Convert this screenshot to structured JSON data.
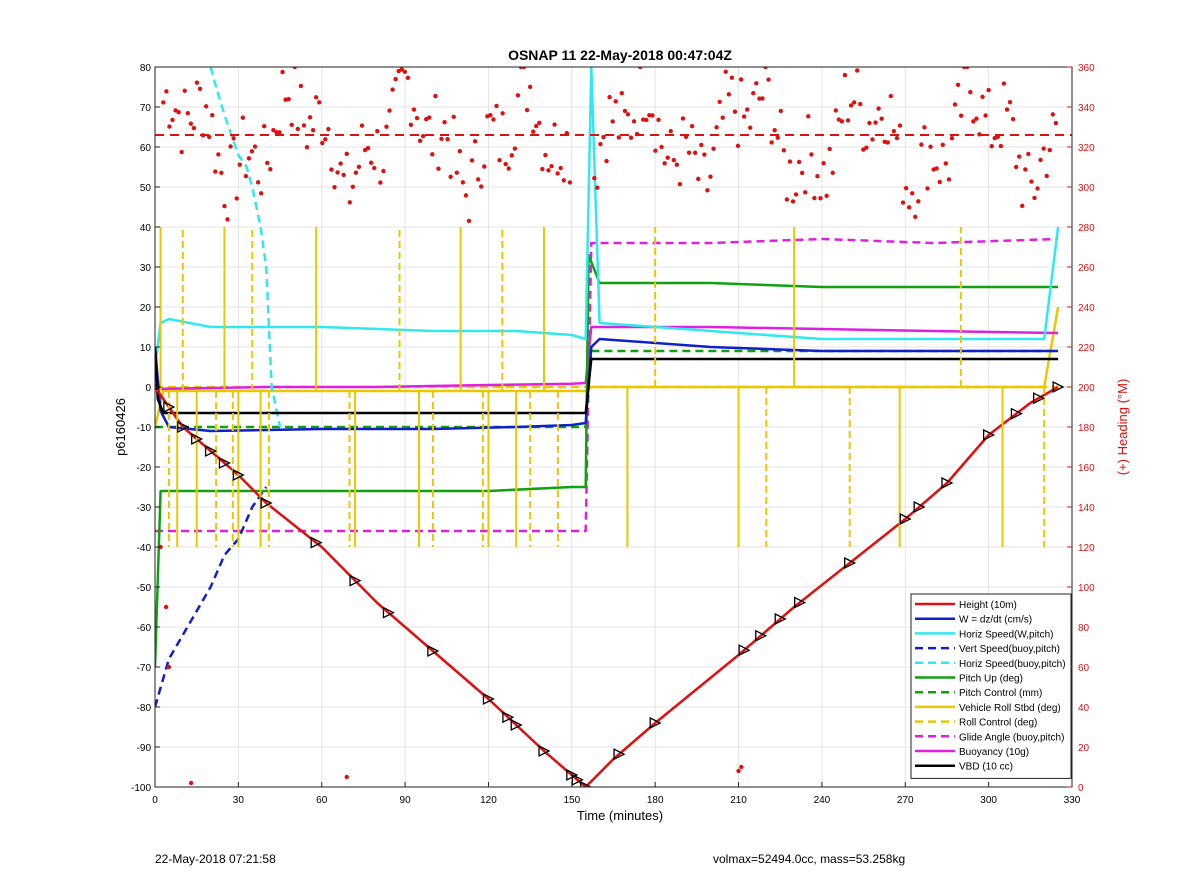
{
  "footer": {
    "left": "22-May-2018 07:21:58",
    "right": "volmax=52494.0cc, mass=53.258kg"
  },
  "chart_data": {
    "type": "line",
    "title": "OSNAP 11 22-May-2018 00:47:04Z",
    "xlabel": "Time (minutes)",
    "ylabel": "p6160426",
    "y2label": "(+) Heading (°M)",
    "xlim": [
      0,
      330
    ],
    "ylim": [
      -100,
      80
    ],
    "y2lim": [
      0,
      360
    ],
    "xticks": [
      0,
      30,
      60,
      90,
      120,
      150,
      180,
      210,
      240,
      270,
      300,
      330
    ],
    "yticks": [
      -100,
      -90,
      -80,
      -70,
      -60,
      -50,
      -40,
      -30,
      -20,
      -10,
      0,
      10,
      20,
      30,
      40,
      50,
      60,
      70,
      80
    ],
    "y2ticks": [
      0,
      20,
      40,
      60,
      80,
      100,
      120,
      140,
      160,
      180,
      200,
      220,
      240,
      260,
      280,
      300,
      320,
      340,
      360
    ],
    "grid": true,
    "legend_position": "bottom-right",
    "colors": {
      "height": "#e01010",
      "w": "#1020c8",
      "hspeed": "#30e8f0",
      "pitch": "#10a010",
      "roll": "#e8c800",
      "glide": "#e020e0",
      "buoy": "#e020e0",
      "vbd": "#000000",
      "heading": "#e01010"
    },
    "series": [
      {
        "name": "Height (10m)",
        "color": "#e01010",
        "style": "solid",
        "x": [
          0,
          5,
          10,
          15,
          20,
          25,
          30,
          40,
          60,
          80,
          100,
          120,
          140,
          150,
          155,
          165,
          180,
          210,
          230,
          250,
          270,
          285,
          300,
          315,
          325
        ],
        "y": [
          0,
          -5,
          -10,
          -13,
          -16,
          -19,
          -22,
          -29,
          -40,
          -54,
          -66,
          -78,
          -91,
          -97,
          -100,
          -93,
          -84,
          -67,
          -55,
          -44,
          -33,
          -24,
          -12,
          -4,
          0
        ]
      },
      {
        "name": "W = dz/dt (cm/s)",
        "color": "#1020c8",
        "style": "solid",
        "x": [
          0,
          2,
          5,
          20,
          60,
          100,
          130,
          150,
          155,
          157,
          160,
          200,
          240,
          280,
          325
        ],
        "y": [
          10,
          -6,
          -10,
          -11,
          -10.5,
          -10.5,
          -10,
          -9.5,
          -9,
          10,
          12,
          10,
          9,
          9,
          9
        ]
      },
      {
        "name": "Horiz Speed(W,pitch)",
        "color": "#30e8f0",
        "style": "solid",
        "x": [
          0,
          2,
          5,
          20,
          60,
          100,
          130,
          150,
          155,
          157,
          160,
          200,
          240,
          280,
          320,
          325
        ],
        "y": [
          5,
          16,
          17,
          15,
          15,
          14,
          14,
          13,
          12,
          80,
          16,
          14,
          12,
          12,
          12,
          40
        ]
      },
      {
        "name": "Vert Speed(buoy,pitch)",
        "color": "#1020c8",
        "style": "dashed",
        "x": [
          0,
          5,
          10,
          15,
          20,
          25,
          30,
          35,
          40
        ],
        "y": [
          -80,
          -68,
          -62,
          -56,
          -50,
          -42,
          -38,
          -30,
          -25
        ]
      },
      {
        "name": "Horiz Speed(buoy,pitch)",
        "color": "#30e8f0",
        "style": "dashed",
        "x": [
          20,
          22,
          25,
          28,
          30,
          33,
          35,
          38,
          40,
          42,
          45
        ],
        "y": [
          80,
          75,
          68,
          62,
          58,
          55,
          50,
          40,
          30,
          0,
          -10
        ]
      },
      {
        "name": "Pitch Up (deg)",
        "color": "#10a010",
        "style": "solid",
        "x": [
          0,
          2,
          5,
          40,
          80,
          120,
          150,
          155,
          156,
          160,
          200,
          240,
          280,
          325
        ],
        "y": [
          -70,
          -26,
          -26,
          -26,
          -26,
          -26,
          -25,
          -25,
          33,
          26,
          26,
          25,
          25,
          25
        ]
      },
      {
        "name": "Pitch Control (mm)",
        "color": "#10a010",
        "style": "dashed",
        "x": [
          0,
          3,
          60,
          120,
          150,
          155,
          157,
          200,
          260,
          325
        ],
        "y": [
          -10,
          -10,
          -10,
          -10,
          -10,
          -10,
          9,
          9,
          9,
          9
        ]
      },
      {
        "name": "Vehicle Roll Stbd (deg)",
        "color": "#e8c800",
        "style": "solid",
        "x": [
          0,
          3,
          30,
          80,
          130,
          150,
          155,
          157,
          200,
          260,
          320,
          325
        ],
        "y": [
          -10,
          -1,
          -1,
          -1,
          -1,
          -1,
          -1,
          0,
          0,
          0,
          0,
          20
        ]
      },
      {
        "name": "Roll Control (deg)",
        "color": "#e8c800",
        "style": "dashed",
        "x": [
          0,
          3,
          60,
          120,
          155,
          157,
          220,
          325
        ],
        "y": [
          0,
          0,
          0,
          0,
          0,
          0,
          0,
          0
        ]
      },
      {
        "name": "Glide Angle (buoy,pitch)",
        "color": "#e020e0",
        "style": "dashed",
        "x": [
          0,
          3,
          40,
          80,
          120,
          150,
          155,
          157,
          160,
          200,
          240,
          280,
          325
        ],
        "y": [
          -36,
          -36,
          -36,
          -36,
          -36,
          -36,
          -36,
          36,
          36,
          36,
          37,
          36,
          37
        ]
      },
      {
        "name": "Buoyancy (10g)",
        "color": "#e020e0",
        "style": "solid",
        "x": [
          0,
          40,
          80,
          120,
          150,
          155,
          157,
          200,
          240,
          280,
          325
        ],
        "y": [
          -0.5,
          0,
          0,
          0.5,
          0.8,
          1,
          15,
          15,
          14.5,
          14,
          13.5
        ]
      },
      {
        "name": "VBD (10 cc)",
        "color": "#000000",
        "style": "solid",
        "x": [
          0,
          1,
          3,
          40,
          80,
          120,
          155,
          157,
          160,
          200,
          240,
          280,
          325
        ],
        "y": [
          10,
          -3,
          -6.5,
          -6.5,
          -6.5,
          -6.5,
          -6.5,
          7,
          7,
          7,
          7,
          7,
          7
        ]
      }
    ],
    "limit_lines": [
      {
        "color": "#e01010",
        "style": "dashed",
        "y2": 326
      }
    ]
  }
}
